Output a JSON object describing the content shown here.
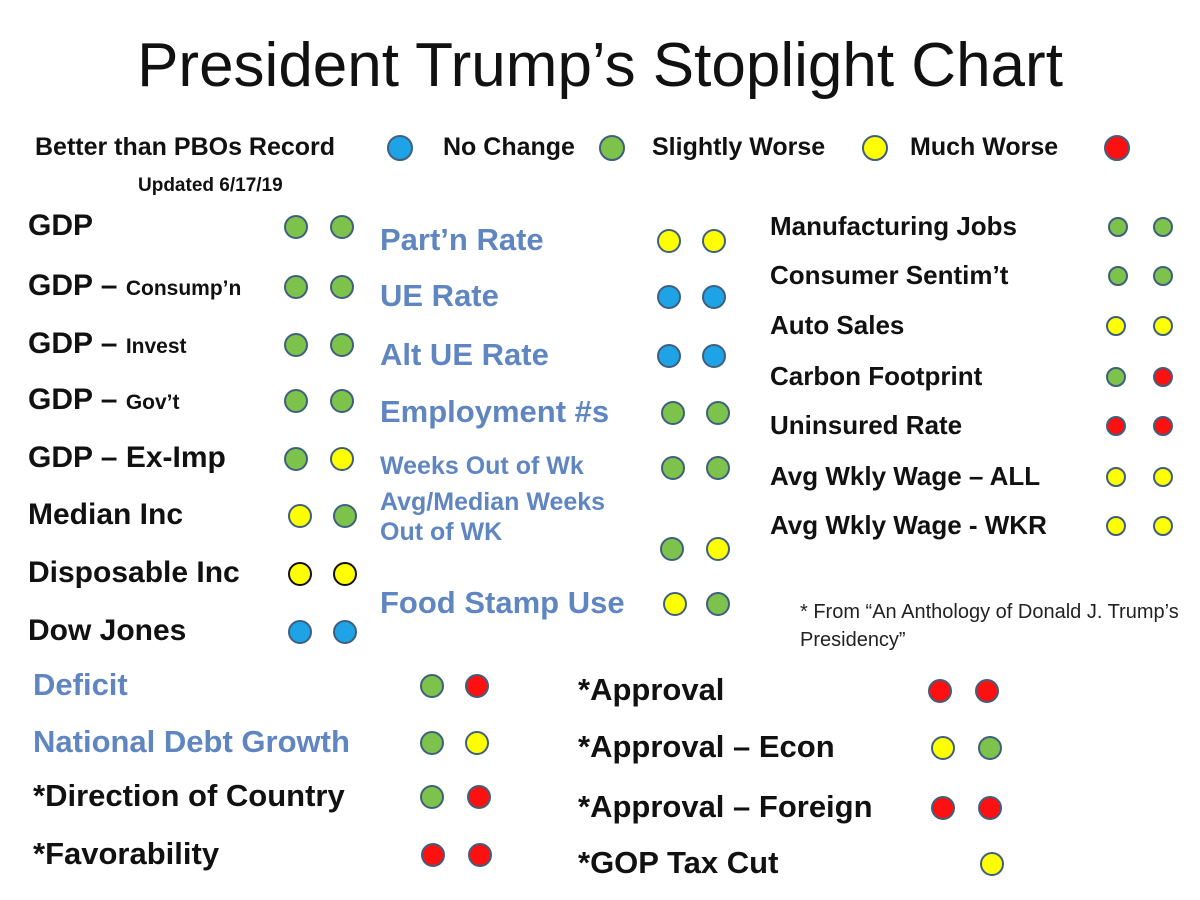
{
  "title": "President Trump’s Stoplight Chart",
  "colors": {
    "blue": "#1ea3e6",
    "green": "#7dc24b",
    "yellow": "#ffff00",
    "red": "#ff1010",
    "border": "#3f5f7f",
    "label_blue": "#5f86c0"
  },
  "legend": [
    {
      "label": "Better than PBOs Record",
      "color": "blue"
    },
    {
      "label": "No Change",
      "color": "green"
    },
    {
      "label": "Slightly Worse",
      "color": "yellow"
    },
    {
      "label": "Much Worse",
      "color": "red"
    }
  ],
  "updated": "Updated  6/17/19",
  "note": "* From “An Anthology of Donald J. Trump’s Presidency”",
  "items": [
    {
      "label": "GDP",
      "sub": "",
      "style": "black",
      "lights": [
        "green",
        "green"
      ]
    },
    {
      "label": "GDP – ",
      "sub": "Consump’n",
      "style": "black",
      "lights": [
        "green",
        "green"
      ]
    },
    {
      "label": "GDP – ",
      "sub": "Invest",
      "style": "black",
      "lights": [
        "green",
        "green"
      ]
    },
    {
      "label": "GDP – ",
      "sub": "Gov’t",
      "style": "black",
      "lights": [
        "green",
        "green"
      ]
    },
    {
      "label": "GDP – Ex-Imp",
      "sub": "",
      "style": "black",
      "lights": [
        "green",
        "yellow"
      ]
    },
    {
      "label": "Median Inc",
      "sub": "",
      "style": "black",
      "lights": [
        "yellow",
        "green"
      ]
    },
    {
      "label": "Disposable Inc",
      "sub": "",
      "style": "black",
      "lights": [
        "yellow",
        "yellow"
      ]
    },
    {
      "label": "Dow Jones",
      "sub": "",
      "style": "black",
      "lights": [
        "blue",
        "blue"
      ]
    },
    {
      "label": "Part’n Rate",
      "sub": "",
      "style": "blue",
      "lights": [
        "yellow",
        "yellow"
      ]
    },
    {
      "label": "UE Rate",
      "sub": "",
      "style": "blue",
      "lights": [
        "blue",
        "blue"
      ]
    },
    {
      "label": "Alt UE Rate",
      "sub": "",
      "style": "blue",
      "lights": [
        "blue",
        "blue"
      ]
    },
    {
      "label": "Employment #s",
      "sub": "",
      "style": "blue",
      "lights": [
        "green",
        "green"
      ]
    },
    {
      "label": "Weeks Out of Wk",
      "sub": "",
      "style": "blue",
      "lights": [
        "green",
        "green"
      ]
    },
    {
      "label": "Avg/Median Weeks",
      "sub": "Out of WK",
      "style": "blue",
      "lights": [
        "green",
        "yellow"
      ]
    },
    {
      "label": "Food Stamp Use",
      "sub": "",
      "style": "blue",
      "lights": [
        "yellow",
        "green"
      ]
    },
    {
      "label": "Manufacturing Jobs",
      "sub": "",
      "style": "black",
      "lights": [
        "green",
        "green"
      ]
    },
    {
      "label": "Consumer Sentim’t",
      "sub": "",
      "style": "black",
      "lights": [
        "green",
        "green"
      ]
    },
    {
      "label": "Auto Sales",
      "sub": "",
      "style": "black",
      "lights": [
        "yellow",
        "yellow"
      ]
    },
    {
      "label": "Carbon Footprint",
      "sub": "",
      "style": "black",
      "lights": [
        "green",
        "red"
      ]
    },
    {
      "label": "Uninsured Rate",
      "sub": "",
      "style": "black",
      "lights": [
        "red",
        "red"
      ]
    },
    {
      "label": "Avg Wkly Wage – ALL",
      "sub": "",
      "style": "black",
      "lights": [
        "yellow",
        "yellow"
      ]
    },
    {
      "label": "Avg Wkly Wage - WKR",
      "sub": "",
      "style": "black",
      "lights": [
        "yellow",
        "yellow"
      ]
    },
    {
      "label": "Deficit",
      "sub": "",
      "style": "blue",
      "lights": [
        "green",
        "red"
      ]
    },
    {
      "label": "National  Debt Growth",
      "sub": "",
      "style": "blue",
      "lights": [
        "green",
        "yellow"
      ]
    },
    {
      "label": "*Direction of Country",
      "sub": "",
      "style": "black",
      "lights": [
        "green",
        "red"
      ]
    },
    {
      "label": "*Favorability",
      "sub": "",
      "style": "black",
      "lights": [
        "red",
        "red"
      ]
    },
    {
      "label": "*Approval",
      "sub": "",
      "style": "black",
      "lights": [
        "red",
        "red"
      ]
    },
    {
      "label": "*Approval – Econ",
      "sub": "",
      "style": "black",
      "lights": [
        "yellow",
        "green"
      ]
    },
    {
      "label": "*Approval – Foreign",
      "sub": "",
      "style": "black",
      "lights": [
        "red",
        "red"
      ]
    },
    {
      "label": "*GOP Tax Cut",
      "sub": "",
      "style": "black",
      "lights": [
        null,
        "yellow"
      ]
    }
  ]
}
